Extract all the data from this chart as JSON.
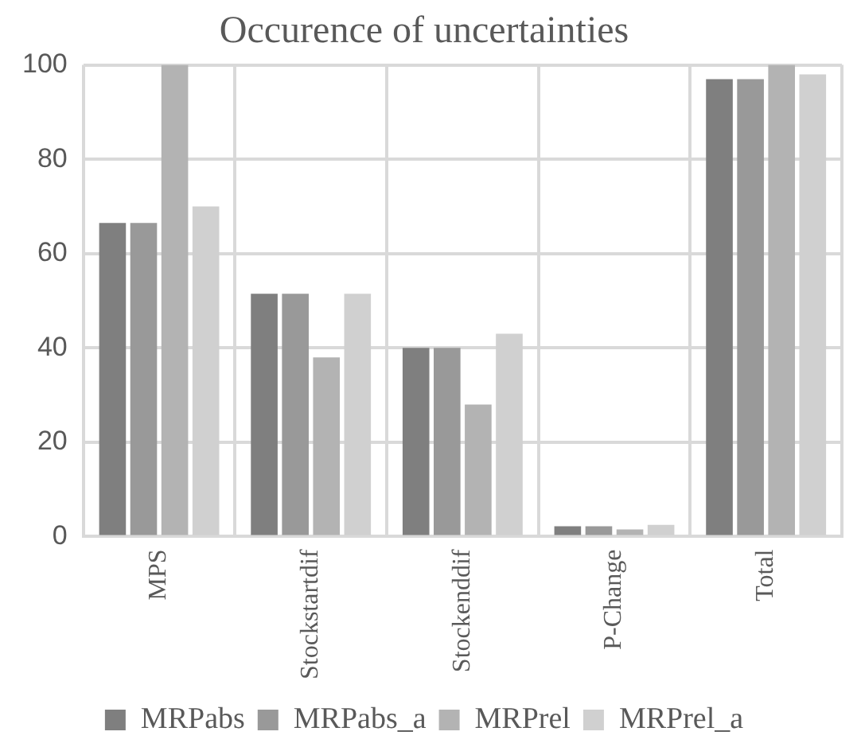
{
  "chart_data": {
    "type": "bar",
    "title": "Occurence of uncertainties",
    "categories": [
      "MPS",
      "Stockstartdif",
      "Stockenddif",
      "P-Change",
      "Total"
    ],
    "series": [
      {
        "name": "MRPabs",
        "color": "#7f7f7f",
        "values": [
          66.5,
          51.5,
          40,
          2.2,
          97
        ]
      },
      {
        "name": "MRPabs_a",
        "color": "#999999",
        "values": [
          66.5,
          51.5,
          40,
          2.2,
          97
        ]
      },
      {
        "name": "MRPrel",
        "color": "#b3b3b3",
        "values": [
          100,
          38,
          28,
          1.5,
          100
        ]
      },
      {
        "name": "MRPrel_a",
        "color": "#d0d0d0",
        "values": [
          70,
          51.5,
          43,
          2.5,
          98
        ]
      }
    ],
    "ylim": [
      0,
      100
    ],
    "yticks": [
      0,
      20,
      40,
      60,
      80,
      100
    ],
    "grid": true,
    "legend": "bottom"
  }
}
